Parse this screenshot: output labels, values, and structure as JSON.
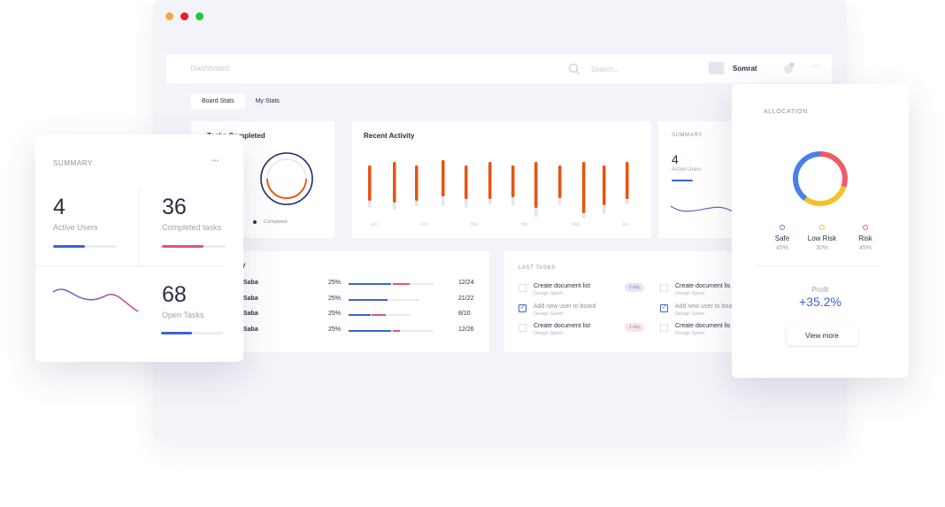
{
  "topbar": {
    "title": "Dashboard",
    "search_placeholder": "Search...",
    "user": "Somrat"
  },
  "tabs": [
    {
      "label": "Board Stats"
    },
    {
      "label": "My Stats"
    }
  ],
  "tasks_completed": {
    "title": "Tasks Completed",
    "legend": "Completed"
  },
  "recent_activity": {
    "title": "Recent Activity",
    "months": [
      "Jan",
      "Feb",
      "Mar",
      "Apr",
      "May",
      "Jun"
    ]
  },
  "summary_back": {
    "label": "SUMMARY",
    "num": "4",
    "caption": "Active Users"
  },
  "table": {
    "title_fragment": "y",
    "rows": [
      {
        "name": "Saba",
        "percent": "25%",
        "date": "12/24"
      },
      {
        "name": "Saba",
        "percent": "25%",
        "date": "21/22"
      },
      {
        "name": "Saba",
        "percent": "25%",
        "date": "8/10"
      },
      {
        "name": "Saba",
        "percent": "25%",
        "date": "12/26"
      }
    ]
  },
  "last_tasks": {
    "label": "LAST TASKS",
    "left": [
      {
        "title": "Create document list",
        "sub": "Design Sprint",
        "badge": "1 day",
        "badge_color": "#dfe6fb",
        "checked": false
      },
      {
        "title": "Add new user to board",
        "sub": "Design Sprint",
        "badge": "",
        "checked": true
      },
      {
        "title": "Create document list",
        "sub": "Design Sprint",
        "badge": "1 day",
        "badge_color": "#fde3e4",
        "checked": false
      }
    ],
    "right": [
      {
        "title": "Create document lis",
        "sub": "Design Sprint",
        "checked": false
      },
      {
        "title": "Add new user to boa",
        "sub": "Design Sprint",
        "checked": true
      },
      {
        "title": "Create document lis",
        "sub": "Design Sprint",
        "checked": false
      }
    ]
  },
  "summary": {
    "label": "SUMMARY",
    "more": "•••",
    "active_users": {
      "num": "4",
      "label": "Active Users",
      "progress": 0.5,
      "color": "#3b64d6"
    },
    "completed_tasks": {
      "num": "36",
      "label": "Completed tasks",
      "progress": 0.65,
      "color": "#e0557a"
    },
    "open_tasks": {
      "num": "68",
      "label": "Open Tasks",
      "progress": 0.5,
      "color": "#3b64d6"
    }
  },
  "allocation": {
    "label": "ALLOCATION",
    "legend": [
      {
        "name": "Safe",
        "value": "45%",
        "color": "#4a7fe8"
      },
      {
        "name": "Low Risk",
        "value": "30%",
        "color": "#f5c02a"
      },
      {
        "name": "Risk",
        "value": "45%",
        "color": "#ef5b67"
      }
    ],
    "profit_label": "Profit",
    "profit_value": "+35.2%",
    "button": "View more"
  },
  "colors": {
    "orange": "#e8530e",
    "blue": "#3b64d6",
    "pink": "#e0557a",
    "dark": "#2b2f45"
  }
}
